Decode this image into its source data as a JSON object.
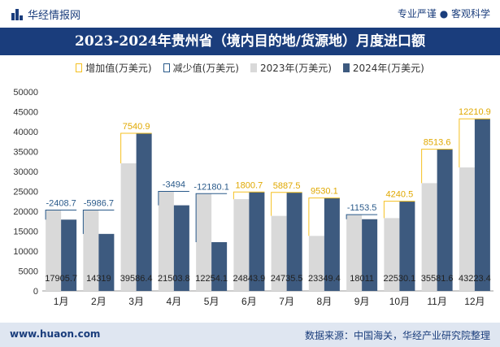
{
  "header": {
    "brand": "华经情报网",
    "slogan": "专业严谨 ● 客观科学",
    "title": "2023-2024年贵州省（境内目的地/货源地）月度进口额"
  },
  "legend": {
    "increase": "增加值(万美元)",
    "decrease": "减少值(万美元)",
    "y2023": "2023年(万美元)",
    "y2024": "2024年(万美元)"
  },
  "footer": {
    "website": "www.huaon.com",
    "source": "数据来源：中国海关，华经产业研究院整理"
  },
  "chart_data": {
    "type": "bar",
    "categories": [
      "1月",
      "2月",
      "3月",
      "4月",
      "5月",
      "6月",
      "7月",
      "8月",
      "9月",
      "10月",
      "11月",
      "12月"
    ],
    "series": [
      {
        "name": "2023年(万美元)",
        "values": [
          20314.4,
          20305.7,
          32045.5,
          24997.8,
          24434.2,
          23043.2,
          18848.0,
          13819.3,
          19164.5,
          18289.6,
          27068.0,
          31012.5
        ]
      },
      {
        "name": "2024年(万美元)",
        "values": [
          17905.7,
          14319,
          39586.4,
          21503.8,
          12254.1,
          24843.9,
          24735.5,
          23349.4,
          18011,
          22530.1,
          35581.6,
          43223.4
        ]
      }
    ],
    "change": [
      -2408.7,
      -5986.7,
      7540.9,
      -3494,
      -12180.1,
      1800.7,
      5887.5,
      9530.1,
      -1153.5,
      4240.5,
      8513.6,
      12210.9
    ],
    "change_labels": [
      "-2408.7",
      "-5986.7",
      "7540.9",
      "-3494",
      "-12180.1",
      "1800.7",
      "5887.5",
      "9530.1",
      "-1153.5",
      "4240.5",
      "8513.6",
      "12210.9"
    ],
    "value_labels": [
      "17905.7",
      "14319",
      "39586.4",
      "21503.8",
      "12254.1",
      "24843.9",
      "24735.5",
      "23349.4",
      "18011",
      "22530.1",
      "35581.6",
      "43223.4"
    ],
    "ylim": [
      0,
      50000
    ],
    "yticks": [
      "0",
      "5000",
      "10000",
      "15000",
      "20000",
      "25000",
      "30000",
      "35000",
      "40000",
      "45000",
      "50000"
    ],
    "colors": {
      "y2023": "#d9d9d9",
      "y2024": "#3d5a7f",
      "increase": "#f5c020",
      "decrease": "#2a5a8a"
    }
  }
}
